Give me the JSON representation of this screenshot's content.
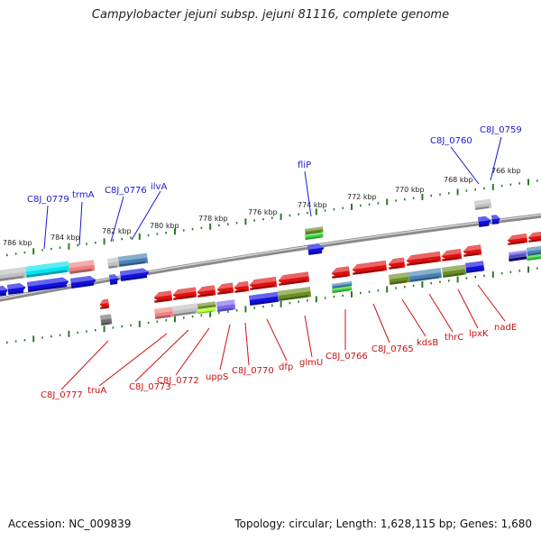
{
  "title": "Campylobacter jejuni subsp. jejuni 81116, complete genome",
  "footer": {
    "accession": "Accession: NC_009839",
    "topology": "Topology: circular; Length: 1,628,115 bp; Genes: 1,680"
  },
  "scale_labels": [
    "786 kbp",
    "784 kbp",
    "782 kbp",
    "780 kbp",
    "778 kbp",
    "776 kbp",
    "774 kbp",
    "772 kbp",
    "770 kbp",
    "768 kbp",
    "766 kbp"
  ],
  "top_gene_labels": [
    "C8J_0779",
    "trmA",
    "C8J_0776",
    "ilvA",
    "fliP",
    "C8J_0760",
    "C8J_0759"
  ],
  "bottom_gene_labels": [
    "C8J_0777",
    "truA",
    "C8J_0773",
    "C8J_0772",
    "uppS",
    "C8J_0770",
    "dfp",
    "glmU",
    "C8J_0766",
    "C8J_0765",
    "kdsB",
    "thrC",
    "lpxK",
    "nadE"
  ],
  "colors": {
    "backbone": "#8a8a8a",
    "tick": "#2a7a2a",
    "label_forward": "#1a1acc",
    "label_reverse": "#cc1111",
    "gene_red": "#e01010",
    "gene_blue": "#1010e0",
    "gene_olive": "#6b8e23",
    "gene_steel": "#4682b4",
    "gene_cyan": "#00e5ee",
    "gene_pink": "#f08080",
    "gene_grey": "#c0c0c0",
    "gene_purple": "#7b68ee",
    "gene_green": "#32cd32"
  }
}
